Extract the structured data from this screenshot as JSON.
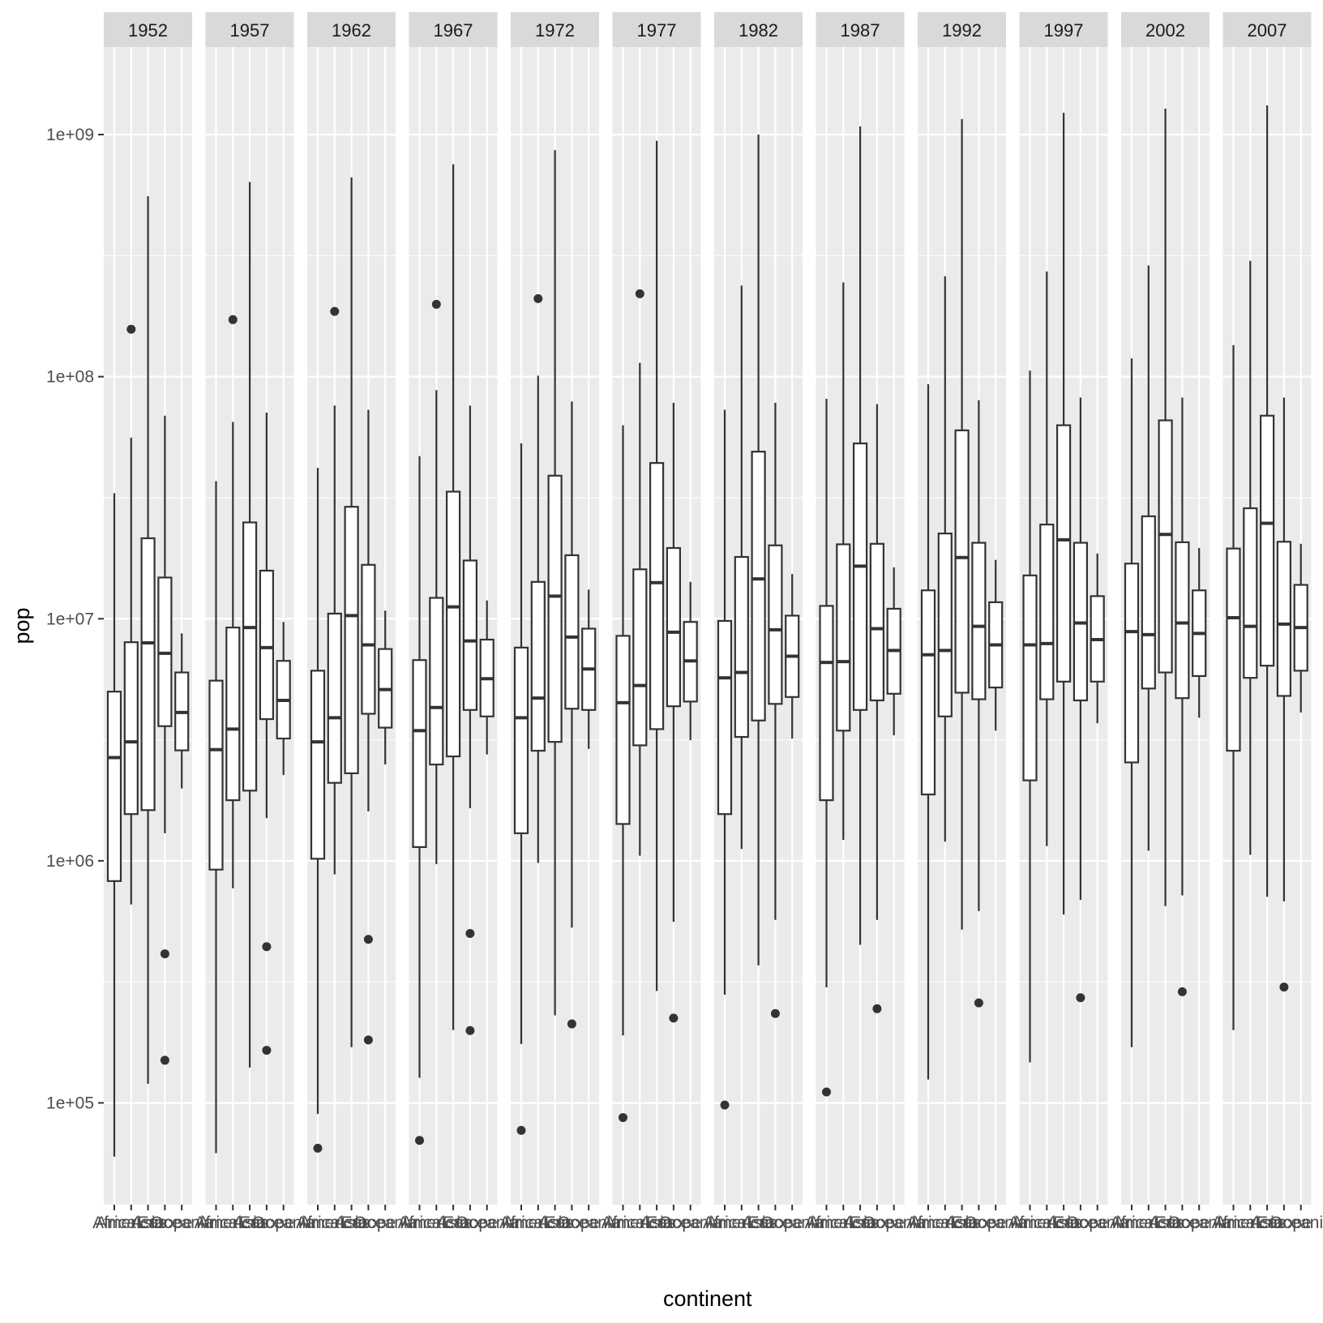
{
  "chart_data": {
    "type": "boxplot",
    "facet_by": "year",
    "xlabel": "continent",
    "ylabel": "pop",
    "y_scale": "log10",
    "ylim": [
      38000,
      2300000000
    ],
    "y_ticks": [
      {
        "value": 100000,
        "label": "1e+05"
      },
      {
        "value": 1000000,
        "label": "1e+06"
      },
      {
        "value": 10000000,
        "label": "1e+07"
      },
      {
        "value": 100000000,
        "label": "1e+08"
      },
      {
        "value": 1000000000,
        "label": "1e+09"
      }
    ],
    "categories": [
      "Africa",
      "Americas",
      "Asia",
      "Europe",
      "Oceania"
    ],
    "facets": [
      {
        "label": "1952",
        "boxes": [
          {
            "q1": 825000,
            "median": 2670000,
            "q3": 5000000,
            "lo": 60000,
            "hi": 33000000,
            "outliers": []
          },
          {
            "q1": 1560000,
            "median": 3100000,
            "q3": 8000000,
            "lo": 660000,
            "hi": 56000000,
            "outliers": [
              157000000
            ]
          },
          {
            "q1": 1620000,
            "median": 7950000,
            "q3": 21500000,
            "lo": 120000,
            "hi": 556000000,
            "outliers": []
          },
          {
            "q1": 3600000,
            "median": 7200000,
            "q3": 14800000,
            "lo": 1300000,
            "hi": 69000000,
            "outliers": [
              150000,
              413000
            ]
          },
          {
            "q1": 2860000,
            "median": 4100000,
            "q3": 6000000,
            "lo": 1990000,
            "hi": 8700000,
            "outliers": []
          }
        ]
      },
      {
        "label": "1957",
        "boxes": [
          {
            "q1": 920000,
            "median": 2880000,
            "q3": 5550000,
            "lo": 62000,
            "hi": 37000000,
            "outliers": []
          },
          {
            "q1": 1780000,
            "median": 3500000,
            "q3": 9200000,
            "lo": 770000,
            "hi": 65000000,
            "outliers": [
              172000000
            ]
          },
          {
            "q1": 1950000,
            "median": 9200000,
            "q3": 25000000,
            "lo": 140000,
            "hi": 637000000,
            "outliers": []
          },
          {
            "q1": 3850000,
            "median": 7600000,
            "q3": 15800000,
            "lo": 1500000,
            "hi": 71000000,
            "outliers": [
              165000,
              442000
            ]
          },
          {
            "q1": 3200000,
            "median": 4600000,
            "q3": 6700000,
            "lo": 2260000,
            "hi": 9700000,
            "outliers": []
          }
        ]
      },
      {
        "label": "1962",
        "boxes": [
          {
            "q1": 1020000,
            "median": 3100000,
            "q3": 6100000,
            "lo": 90000,
            "hi": 42000000,
            "outliers": [
              65000
            ]
          },
          {
            "q1": 2100000,
            "median": 3900000,
            "q3": 10500000,
            "lo": 880000,
            "hi": 76000000,
            "outliers": [
              186000000
            ]
          },
          {
            "q1": 2300000,
            "median": 10300000,
            "q3": 29000000,
            "lo": 170000,
            "hi": 666000000,
            "outliers": []
          },
          {
            "q1": 4050000,
            "median": 7800000,
            "q3": 16700000,
            "lo": 1600000,
            "hi": 73000000,
            "outliers": [
              182000,
              474000
            ]
          },
          {
            "q1": 3550000,
            "median": 5100000,
            "q3": 7500000,
            "lo": 2500000,
            "hi": 10800000,
            "outliers": []
          }
        ]
      },
      {
        "label": "1967",
        "boxes": [
          {
            "q1": 1140000,
            "median": 3450000,
            "q3": 6750000,
            "lo": 127000,
            "hi": 47000000,
            "outliers": [
              70000
            ]
          },
          {
            "q1": 2500000,
            "median": 4300000,
            "q3": 12200000,
            "lo": 970000,
            "hi": 88000000,
            "outliers": [
              199000000
            ]
          },
          {
            "q1": 2700000,
            "median": 11200000,
            "q3": 33500000,
            "lo": 200000,
            "hi": 754000000,
            "outliers": []
          },
          {
            "q1": 4200000,
            "median": 8100000,
            "q3": 17400000,
            "lo": 1650000,
            "hi": 76000000,
            "outliers": [
              199000,
              501000
            ]
          },
          {
            "q1": 3950000,
            "median": 5650000,
            "q3": 8200000,
            "lo": 2750000,
            "hi": 11900000,
            "outliers": []
          }
        ]
      },
      {
        "label": "1972",
        "boxes": [
          {
            "q1": 1300000,
            "median": 3900000,
            "q3": 7600000,
            "lo": 175000,
            "hi": 53000000,
            "outliers": [
              77000
            ]
          },
          {
            "q1": 2850000,
            "median": 4700000,
            "q3": 14200000,
            "lo": 980000,
            "hi": 101000000,
            "outliers": [
              210000000
            ]
          },
          {
            "q1": 3100000,
            "median": 12400000,
            "q3": 39000000,
            "lo": 230000,
            "hi": 862000000,
            "outliers": []
          },
          {
            "q1": 4250000,
            "median": 8400000,
            "q3": 18300000,
            "lo": 530000,
            "hi": 79000000,
            "outliers": [
              212000
            ]
          },
          {
            "q1": 4200000,
            "median": 6200000,
            "q3": 9100000,
            "lo": 2900000,
            "hi": 13200000,
            "outliers": []
          }
        ]
      },
      {
        "label": "1977",
        "boxes": [
          {
            "q1": 1420000,
            "median": 4500000,
            "q3": 8500000,
            "lo": 190000,
            "hi": 63000000,
            "outliers": [
              87000
            ]
          },
          {
            "q1": 3000000,
            "median": 5300000,
            "q3": 16000000,
            "lo": 1050000,
            "hi": 114000000,
            "outliers": [
              220000000
            ]
          },
          {
            "q1": 3500000,
            "median": 14100000,
            "q3": 44000000,
            "lo": 290000,
            "hi": 943000000,
            "outliers": []
          },
          {
            "q1": 4350000,
            "median": 8800000,
            "q3": 19600000,
            "lo": 560000,
            "hi": 78000000,
            "outliers": [
              224000
            ]
          },
          {
            "q1": 4550000,
            "median": 6700000,
            "q3": 9700000,
            "lo": 3150000,
            "hi": 14200000,
            "outliers": []
          }
        ]
      },
      {
        "label": "1982",
        "boxes": [
          {
            "q1": 1560000,
            "median": 5700000,
            "q3": 9800000,
            "lo": 280000,
            "hi": 73000000,
            "outliers": [
              98000
            ]
          },
          {
            "q1": 3250000,
            "median": 6000000,
            "q3": 18000000,
            "lo": 1120000,
            "hi": 238000000,
            "outliers": []
          },
          {
            "q1": 3800000,
            "median": 14600000,
            "q3": 49000000,
            "lo": 370000,
            "hi": 1000000000,
            "outliers": []
          },
          {
            "q1": 4450000,
            "median": 9000000,
            "q3": 20100000,
            "lo": 570000,
            "hi": 78000000,
            "outliers": [
              234000
            ]
          },
          {
            "q1": 4750000,
            "median": 7000000,
            "q3": 10300000,
            "lo": 3200000,
            "hi": 15300000,
            "outliers": []
          }
        ]
      },
      {
        "label": "1987",
        "boxes": [
          {
            "q1": 1780000,
            "median": 6600000,
            "q3": 11300000,
            "lo": 300000,
            "hi": 81000000,
            "outliers": [
              111000
            ]
          },
          {
            "q1": 3450000,
            "median": 6650000,
            "q3": 20300000,
            "lo": 1220000,
            "hi": 245000000,
            "outliers": []
          },
          {
            "q1": 4200000,
            "median": 16500000,
            "q3": 53000000,
            "lo": 450000,
            "hi": 1080000000,
            "outliers": []
          },
          {
            "q1": 4600000,
            "median": 9100000,
            "q3": 20400000,
            "lo": 570000,
            "hi": 77000000,
            "outliers": [
              245000
            ]
          },
          {
            "q1": 4900000,
            "median": 7400000,
            "q3": 11000000,
            "lo": 3300000,
            "hi": 16300000,
            "outliers": []
          }
        ]
      },
      {
        "label": "1992",
        "boxes": [
          {
            "q1": 1880000,
            "median": 7100000,
            "q3": 13100000,
            "lo": 125000,
            "hi": 93000000,
            "outliers": []
          },
          {
            "q1": 3950000,
            "median": 7400000,
            "q3": 22500000,
            "lo": 1200000,
            "hi": 260000000,
            "outliers": []
          },
          {
            "q1": 4950000,
            "median": 17900000,
            "q3": 60000000,
            "lo": 520000,
            "hi": 1160000000,
            "outliers": []
          },
          {
            "q1": 4650000,
            "median": 9300000,
            "q3": 20600000,
            "lo": 620000,
            "hi": 80000000,
            "outliers": [
              259000
            ]
          },
          {
            "q1": 5200000,
            "median": 7800000,
            "q3": 11700000,
            "lo": 3450000,
            "hi": 17500000,
            "outliers": []
          }
        ]
      },
      {
        "label": "1997",
        "boxes": [
          {
            "q1": 2150000,
            "median": 7800000,
            "q3": 15100000,
            "lo": 147000,
            "hi": 106000000,
            "outliers": []
          },
          {
            "q1": 4650000,
            "median": 7900000,
            "q3": 24500000,
            "lo": 1150000,
            "hi": 272000000,
            "outliers": []
          },
          {
            "q1": 5500000,
            "median": 21200000,
            "q3": 63000000,
            "lo": 600000,
            "hi": 1230000000,
            "outliers": []
          },
          {
            "q1": 4600000,
            "median": 9600000,
            "q3": 20600000,
            "lo": 690000,
            "hi": 82000000,
            "outliers": [
              272000
            ]
          },
          {
            "q1": 5500000,
            "median": 8200000,
            "q3": 12400000,
            "lo": 3700000,
            "hi": 18600000,
            "outliers": []
          }
        ]
      },
      {
        "label": "2002",
        "boxes": [
          {
            "q1": 2550000,
            "median": 8850000,
            "q3": 16900000,
            "lo": 170000,
            "hi": 119000000,
            "outliers": []
          },
          {
            "q1": 5150000,
            "median": 8600000,
            "q3": 26500000,
            "lo": 1100000,
            "hi": 288000000,
            "outliers": []
          },
          {
            "q1": 6000000,
            "median": 22300000,
            "q3": 66000000,
            "lo": 650000,
            "hi": 1280000000,
            "outliers": []
          },
          {
            "q1": 4700000,
            "median": 9600000,
            "q3": 20700000,
            "lo": 720000,
            "hi": 82000000,
            "outliers": [
              288000
            ]
          },
          {
            "q1": 5800000,
            "median": 8700000,
            "q3": 13100000,
            "lo": 3900000,
            "hi": 19600000,
            "outliers": []
          }
        ]
      },
      {
        "label": "2007",
        "boxes": [
          {
            "q1": 2850000,
            "median": 10100000,
            "q3": 19500000,
            "lo": 200000,
            "hi": 135000000,
            "outliers": []
          },
          {
            "q1": 5700000,
            "median": 9300000,
            "q3": 28600000,
            "lo": 1060000,
            "hi": 301000000,
            "outliers": []
          },
          {
            "q1": 6400000,
            "median": 24800000,
            "q3": 69000000,
            "lo": 710000,
            "hi": 1320000000,
            "outliers": []
          },
          {
            "q1": 4800000,
            "median": 9500000,
            "q3": 20800000,
            "lo": 680000,
            "hi": 82000000,
            "outliers": [
              301000
            ]
          },
          {
            "q1": 6100000,
            "median": 9200000,
            "q3": 13800000,
            "lo": 4100000,
            "hi": 20400000,
            "outliers": []
          }
        ]
      }
    ]
  }
}
